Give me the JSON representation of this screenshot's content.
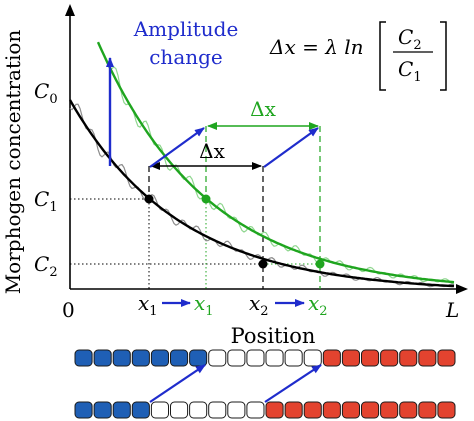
{
  "axis": {
    "y_label": "Morphogen concentration",
    "x_label": "Position",
    "origin": "0",
    "x_end": "L",
    "y_ticks": {
      "c0": "C",
      "c0_sub": "0",
      "c1": "C",
      "c1_sub": "1",
      "c2": "C",
      "c2_sub": "2"
    },
    "x_ticks": {
      "x1": "x",
      "x1_sub": "1",
      "x2": "x",
      "x2_sub": "2"
    }
  },
  "annotations": {
    "amplitude_line1": "Amplitude",
    "amplitude_line2": "change",
    "delta_x": "Δx"
  },
  "formula": {
    "lhs": "Δx = λ ln",
    "num": "C",
    "num_sub": "2",
    "den": "C",
    "den_sub": "1"
  },
  "cells": {
    "row1": [
      "blue",
      "blue",
      "blue",
      "blue",
      "blue",
      "blue",
      "blue",
      "white",
      "white",
      "white",
      "white",
      "white",
      "white",
      "red",
      "red",
      "red",
      "red",
      "red",
      "red",
      "red"
    ],
    "row2": [
      "blue",
      "blue",
      "blue",
      "blue",
      "white",
      "white",
      "white",
      "white",
      "white",
      "white",
      "red",
      "red",
      "red",
      "red",
      "red",
      "red",
      "red",
      "red",
      "red",
      "red"
    ]
  },
  "colors": {
    "black_curve": "#000000",
    "green_curve": "#1fa51f",
    "green_noise": "#8fd68f",
    "gray_noise": "#8c8c8c",
    "arrow_blue": "#1f2ccc",
    "cell_blue": "#1f5fb5",
    "cell_red": "#e3432f",
    "cell_white": "#ffffff"
  }
}
